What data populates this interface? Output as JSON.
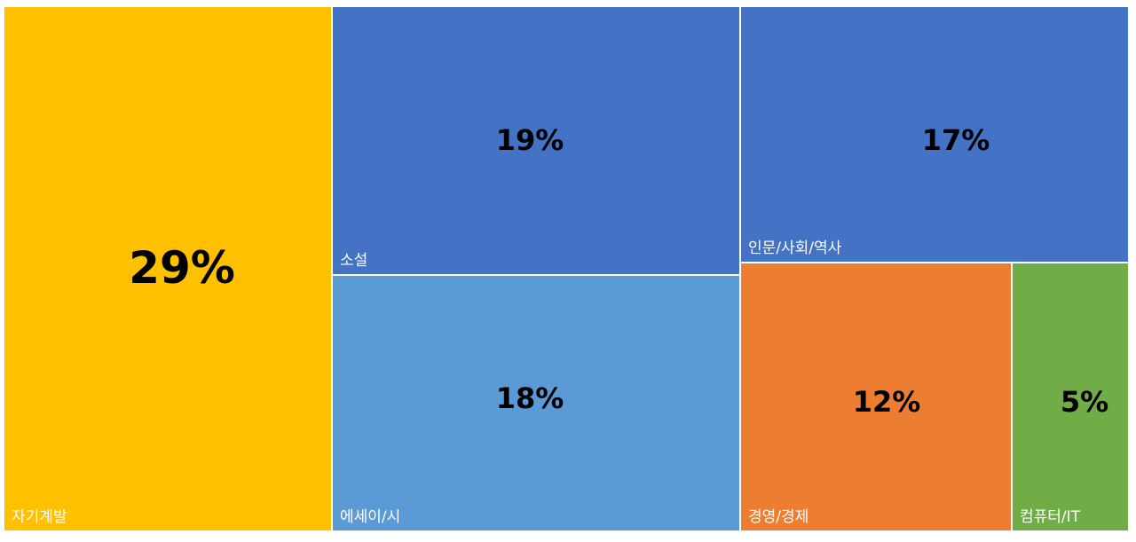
{
  "chart_data": {
    "type": "treemap",
    "unit": "%",
    "items": [
      {
        "name": "자기계발",
        "value": 29,
        "label": "29%",
        "color": "#FFC000"
      },
      {
        "name": "소설",
        "value": 19,
        "label": "19%",
        "color": "#4472C4"
      },
      {
        "name": "에세이/시",
        "value": 18,
        "label": "18%",
        "color": "#5B9BD5"
      },
      {
        "name": "인문/사회/역사",
        "value": 17,
        "label": "17%",
        "color": "#4472C4"
      },
      {
        "name": "경영/경제",
        "value": 12,
        "label": "12%",
        "color": "#ED7D31"
      },
      {
        "name": "컴퓨터/IT",
        "value": 5,
        "label": "5%",
        "color": "#70AD47"
      }
    ]
  }
}
